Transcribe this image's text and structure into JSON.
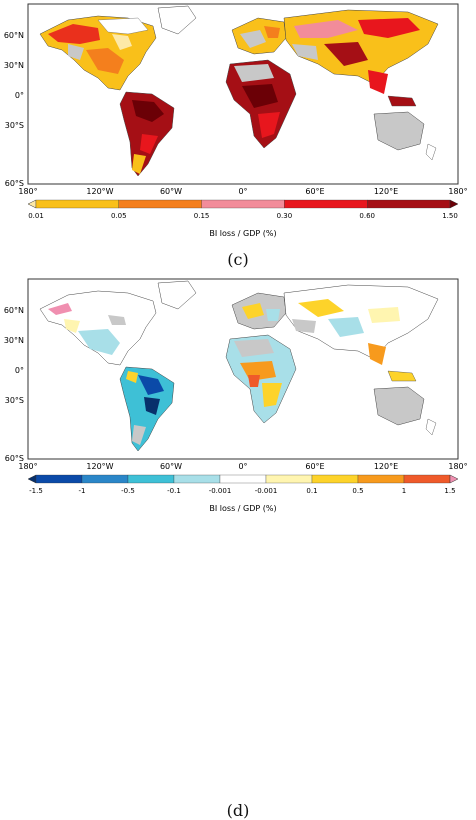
{
  "panels": [
    {
      "id": "c",
      "label": "(c)",
      "legend_title": "BI loss / GDP (%)",
      "lat_ticks": [
        "60°N",
        "30°N",
        "0°",
        "30°S",
        "60°S"
      ],
      "lon_ticks": [
        "180°",
        "120°W",
        "60°W",
        "0°",
        "60°E",
        "120°E",
        "180°"
      ],
      "colorbar": {
        "ticks": [
          "0.01",
          "0.05",
          "0.15",
          "0.30",
          "0.60",
          "1.50"
        ],
        "colors": [
          "#fde9a8",
          "#f9c01a",
          "#f47f1d",
          "#f28c9a",
          "#e8161d",
          "#a50f15",
          "#6b0006"
        ]
      },
      "no_data_color": "#c8c8c8"
    },
    {
      "id": "d",
      "label": "(d)",
      "legend_title": "BI loss / GDP (%)",
      "lat_ticks": [
        "60°N",
        "30°N",
        "0°",
        "30°S",
        "60°S"
      ],
      "lon_ticks": [
        "180°",
        "120°W",
        "60°W",
        "0°",
        "60°E",
        "120°E",
        "180°"
      ],
      "colorbar": {
        "ticks": [
          "-1.5",
          "-1",
          "-0.5",
          "-0.1",
          "-0.001",
          "-0.001",
          "0.1",
          "0.5",
          "1",
          "1.5"
        ],
        "colors": [
          "#08306b",
          "#0b4aa8",
          "#2a86c8",
          "#3ec0d6",
          "#a8dfe8",
          "#ffffff",
          "#fff5b0",
          "#fdd32a",
          "#f79a1d",
          "#ef5a2a",
          "#f08fb0"
        ]
      },
      "no_data_color": "#c8c8c8"
    }
  ]
}
